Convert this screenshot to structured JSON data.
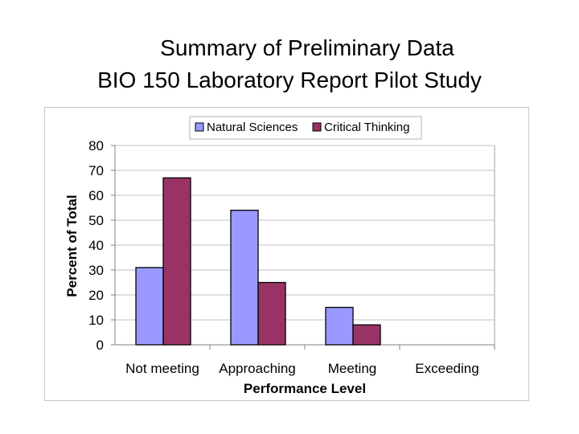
{
  "slide": {
    "title_line1": "Summary of Preliminary Data",
    "title_line2": "BIO 150 Laboratory Report Pilot Study"
  },
  "chart_data": {
    "type": "bar",
    "title": "",
    "xlabel": "Performance Level",
    "ylabel": "Percent of Total",
    "categories": [
      "Not meeting",
      "Approaching",
      "Meeting",
      "Exceeding"
    ],
    "series": [
      {
        "name": "Natural Sciences",
        "values": [
          31,
          54,
          15,
          0
        ],
        "color": "#9999ff"
      },
      {
        "name": "Critical Thinking",
        "values": [
          67,
          25,
          8,
          0
        ],
        "color": "#993366"
      }
    ],
    "ylim": [
      0,
      80
    ],
    "yticks": [
      "0",
      "10",
      "20",
      "30",
      "40",
      "50",
      "60",
      "70",
      "80"
    ],
    "grid": true,
    "legend_position": "top"
  }
}
